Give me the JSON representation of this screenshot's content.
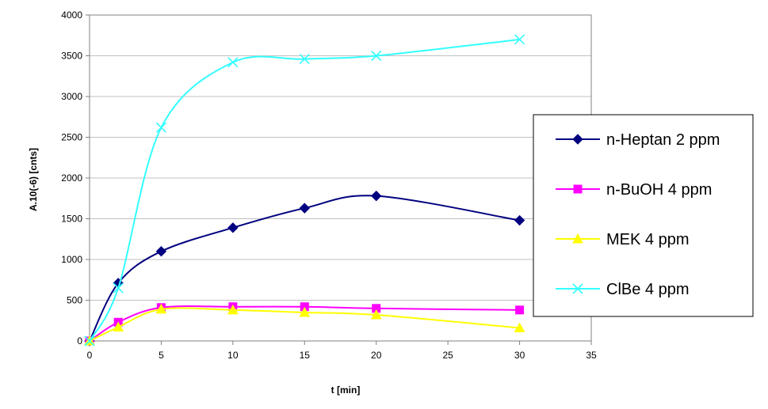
{
  "chart_data": {
    "type": "line",
    "title": "",
    "xlabel": "t [min]",
    "ylabel": "A.10(-6) [cnts]",
    "xlim": [
      0,
      35
    ],
    "ylim": [
      0,
      4000
    ],
    "xticks": [
      0,
      5,
      10,
      15,
      20,
      25,
      30,
      35
    ],
    "yticks": [
      0,
      500,
      1000,
      1500,
      2000,
      2500,
      3000,
      3500,
      4000
    ],
    "grid": "horizontal",
    "legend_position": "right",
    "series": [
      {
        "name": "n-Heptan 2 ppm",
        "color": "#000080",
        "marker": "diamond",
        "x": [
          0,
          2,
          5,
          10,
          15,
          20,
          30
        ],
        "y": [
          0,
          710,
          1100,
          1390,
          1630,
          1780,
          1480
        ]
      },
      {
        "name": "n-BuOH 4 ppm",
        "color": "#ff00ff",
        "marker": "square",
        "x": [
          0,
          2,
          5,
          10,
          15,
          20,
          30
        ],
        "y": [
          0,
          230,
          410,
          420,
          420,
          400,
          380
        ]
      },
      {
        "name": "MEK 4 ppm",
        "color": "#ffff00",
        "marker": "triangle",
        "x": [
          0,
          2,
          5,
          10,
          15,
          20,
          30
        ],
        "y": [
          0,
          170,
          390,
          380,
          350,
          320,
          160
        ]
      },
      {
        "name": "ClBe 4 ppm",
        "color": "#33ffff",
        "marker": "x",
        "x": [
          0,
          2,
          5,
          10,
          15,
          20,
          30
        ],
        "y": [
          0,
          650,
          2620,
          3420,
          3460,
          3500,
          3700
        ]
      }
    ]
  }
}
